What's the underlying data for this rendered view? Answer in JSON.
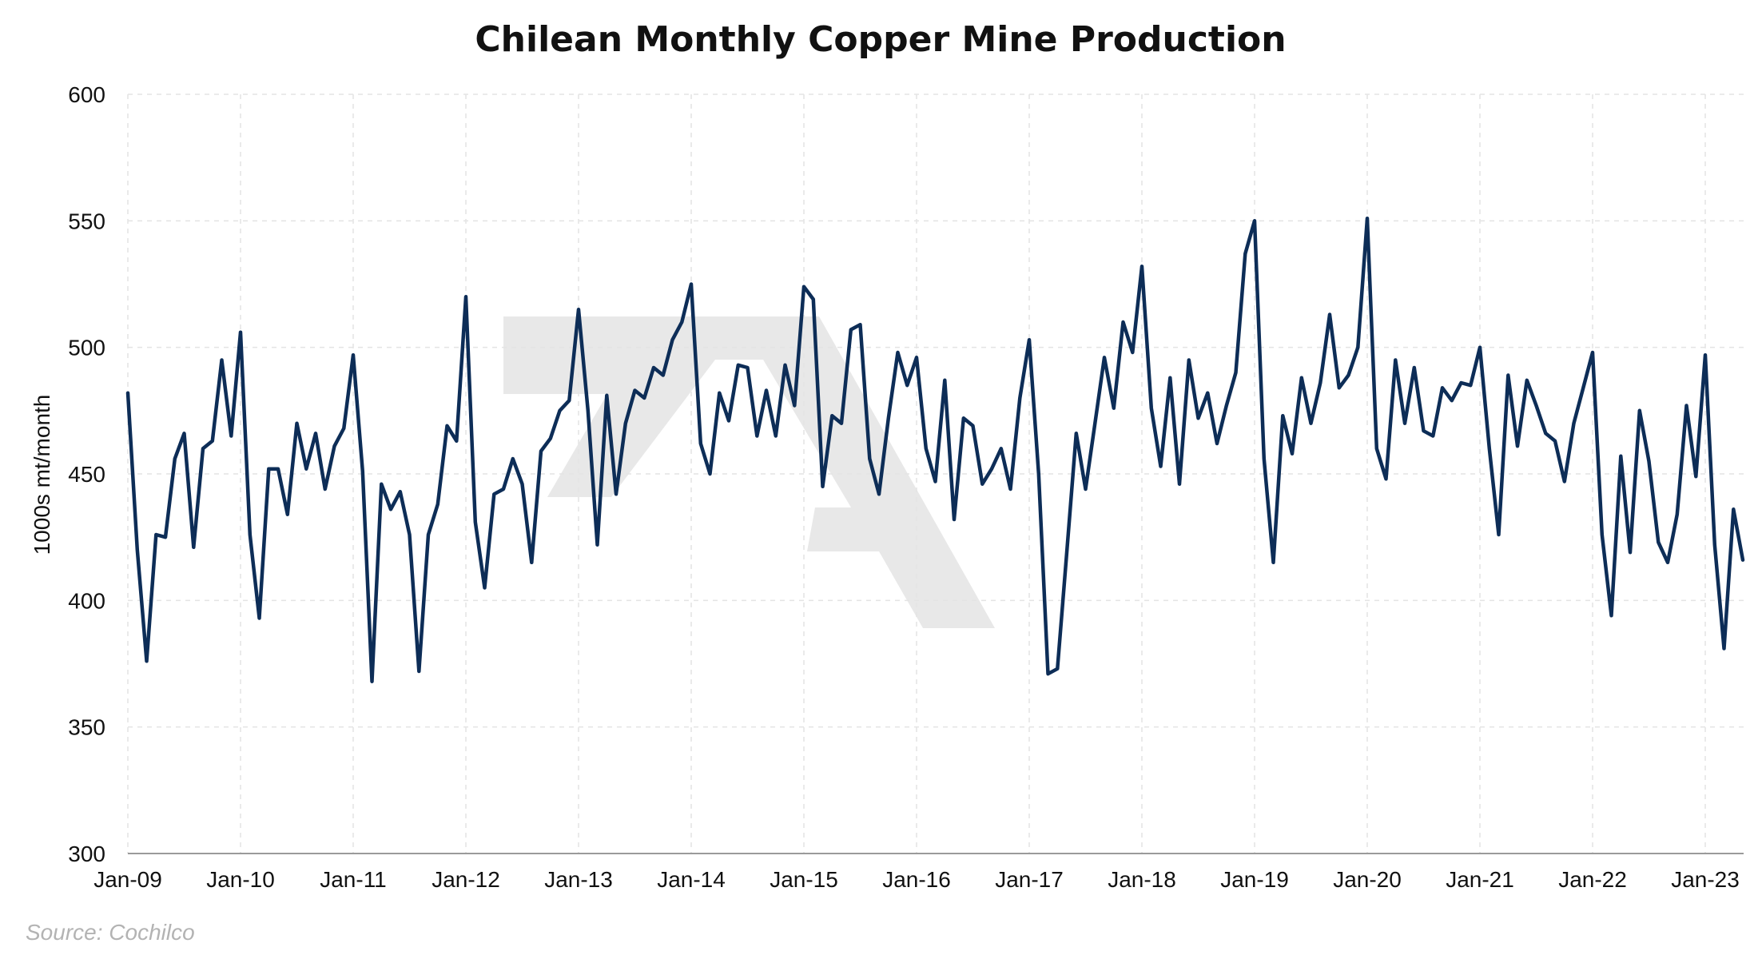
{
  "colors": {
    "line": "#0d2d57",
    "watermark": "#e8e8e8",
    "grid": "#e4e4e4",
    "source": "#b3b3b3"
  },
  "source": "Source: Cochilco",
  "chart_data": {
    "type": "line",
    "title": "Chilean Monthly Copper Mine Production",
    "ylabel": "1000s mt/month",
    "xlabel": "",
    "ylim": [
      300,
      600
    ],
    "yticks": [
      300,
      350,
      400,
      450,
      500,
      550,
      600
    ],
    "grid": true,
    "x_start": "Jan-09",
    "x_ticks": [
      "Jan-09",
      "Jan-10",
      "Jan-11",
      "Jan-12",
      "Jan-13",
      "Jan-14",
      "Jan-15",
      "Jan-16",
      "Jan-17",
      "Jan-18",
      "Jan-19",
      "Jan-20",
      "Jan-21",
      "Jan-22",
      "Jan-23"
    ],
    "series": [
      {
        "name": "",
        "values": [
          482,
          420,
          376,
          426,
          425,
          456,
          466,
          421,
          460,
          463,
          495,
          465,
          506,
          426,
          393,
          452,
          452,
          434,
          470,
          452,
          466,
          444,
          461,
          468,
          497,
          451,
          368,
          446,
          436,
          443,
          426,
          372,
          426,
          438,
          469,
          463,
          520,
          431,
          405,
          442,
          444,
          456,
          446,
          415,
          459,
          464,
          475,
          479,
          515,
          475,
          422,
          481,
          442,
          470,
          483,
          480,
          492,
          489,
          503,
          510,
          525,
          462,
          450,
          482,
          471,
          493,
          492,
          465,
          483,
          465,
          493,
          477,
          524,
          519,
          445,
          473,
          470,
          507,
          509,
          456,
          442,
          472,
          498,
          485,
          496,
          460,
          447,
          487,
          432,
          472,
          469,
          446,
          452,
          460,
          444,
          480,
          503,
          450,
          371,
          373,
          419,
          466,
          444,
          470,
          496,
          476,
          510,
          498,
          532,
          476,
          453,
          488,
          446,
          495,
          472,
          482,
          462,
          477,
          490,
          537,
          550,
          456,
          415,
          473,
          458,
          488,
          470,
          486,
          513,
          484,
          489,
          500,
          551,
          460,
          448,
          495,
          470,
          492,
          467,
          465,
          484,
          479,
          486,
          485,
          500,
          460,
          426,
          489,
          461,
          487,
          477,
          466,
          463,
          447,
          470,
          484,
          498,
          426,
          394,
          457,
          419,
          475,
          455,
          423,
          415,
          434,
          477,
          449,
          497,
          422,
          381,
          436,
          416
        ]
      }
    ]
  }
}
